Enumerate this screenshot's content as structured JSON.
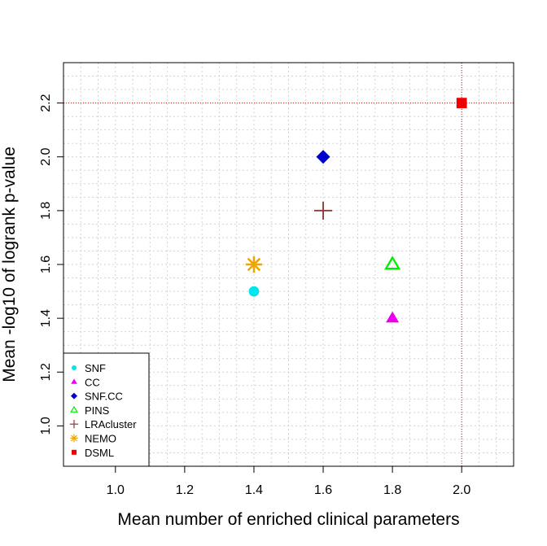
{
  "chart_data": {
    "type": "scatter",
    "title": "",
    "xlabel": "Mean number of enriched clinical parameters",
    "ylabel": "Mean -log10 of logrank p-value",
    "xlim": [
      0.85,
      2.15
    ],
    "ylim": [
      0.85,
      2.35
    ],
    "x_ticks": [
      1.0,
      1.2,
      1.4,
      1.6,
      1.8,
      2.0
    ],
    "y_ticks": [
      1.0,
      1.2,
      1.4,
      1.6,
      1.8,
      2.0,
      2.2
    ],
    "x_tick_labels": [
      "1.0",
      "1.2",
      "1.4",
      "1.6",
      "1.8",
      "2.0"
    ],
    "y_tick_labels": [
      "1.0",
      "1.2",
      "1.4",
      "1.6",
      "1.8",
      "2.0",
      "2.2"
    ],
    "minor_grid_step": 0.05,
    "grid": true,
    "legend_position": "bottom-left",
    "reference_lines": {
      "x": 2.0,
      "y": 2.2,
      "color": "#b22222",
      "style": "dotted"
    },
    "series": [
      {
        "name": "SNF",
        "x": 1.4,
        "y": 1.5,
        "marker": "circle",
        "color": "#00e5ee"
      },
      {
        "name": "CC",
        "x": 1.8,
        "y": 1.4,
        "marker": "triangle",
        "color": "#ee00ee"
      },
      {
        "name": "SNF.CC",
        "x": 1.6,
        "y": 2.0,
        "marker": "diamond",
        "color": "#0000cd"
      },
      {
        "name": "PINS",
        "x": 1.8,
        "y": 1.6,
        "marker": "triangle-open",
        "color": "#00ee00"
      },
      {
        "name": "LRAcluster",
        "x": 1.6,
        "y": 1.8,
        "marker": "plus",
        "color": "#8b3a3a"
      },
      {
        "name": "NEMO",
        "x": 1.4,
        "y": 1.6,
        "marker": "asterisk",
        "color": "#eea500"
      },
      {
        "name": "DSML",
        "x": 2.0,
        "y": 2.2,
        "marker": "square",
        "color": "#ee0000"
      }
    ]
  }
}
